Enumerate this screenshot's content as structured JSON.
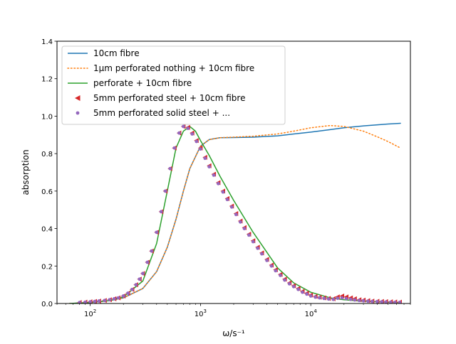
{
  "chart_data": {
    "type": "line",
    "title": "",
    "xlabel": "ω/s⁻¹",
    "ylabel": "absorption",
    "xscale": "log",
    "xlim": [
      50,
      80000
    ],
    "ylim": [
      0,
      1.4
    ],
    "x_ticks": [
      {
        "value": 100,
        "base": "10",
        "exp": "2"
      },
      {
        "value": 1000,
        "base": "10",
        "exp": "3"
      },
      {
        "value": 10000,
        "base": "10",
        "exp": "4"
      }
    ],
    "y_ticks": [
      "0.0",
      "0.2",
      "0.4",
      "0.6",
      "0.8",
      "1.0",
      "1.2",
      "1.4"
    ],
    "legend_position": "upper-left",
    "grid": false,
    "series": [
      {
        "name": "10cm fibre",
        "color": "#1f77b4",
        "style": "solid-line",
        "x": [
          65,
          100,
          150,
          200,
          300,
          400,
          500,
          600,
          700,
          800,
          1000,
          1200,
          1500,
          2000,
          3000,
          5000,
          7000,
          10000,
          15000,
          20000,
          30000,
          50000,
          65000
        ],
        "y": [
          0.0,
          0.005,
          0.015,
          0.03,
          0.08,
          0.17,
          0.3,
          0.45,
          0.6,
          0.72,
          0.84,
          0.875,
          0.885,
          0.886,
          0.888,
          0.895,
          0.905,
          0.915,
          0.928,
          0.938,
          0.948,
          0.958,
          0.962
        ]
      },
      {
        "name": "1μm perforated nothing + 10cm fibre",
        "color": "#ff7f0e",
        "style": "dotted-line",
        "x": [
          65,
          100,
          150,
          200,
          300,
          400,
          500,
          600,
          700,
          800,
          1000,
          1200,
          1500,
          2000,
          3000,
          5000,
          7000,
          10000,
          15000,
          20000,
          30000,
          40000,
          50000,
          65000
        ],
        "y": [
          0.0,
          0.005,
          0.015,
          0.03,
          0.08,
          0.17,
          0.3,
          0.45,
          0.6,
          0.72,
          0.84,
          0.875,
          0.885,
          0.888,
          0.893,
          0.905,
          0.92,
          0.938,
          0.95,
          0.945,
          0.92,
          0.89,
          0.865,
          0.83
        ]
      },
      {
        "name": "perforate + 10cm fibre",
        "color": "#2ca02c",
        "style": "solid-line",
        "x": [
          65,
          100,
          150,
          200,
          300,
          400,
          500,
          600,
          700,
          800,
          900,
          1000,
          1200,
          1500,
          2000,
          3000,
          5000,
          7000,
          10000,
          15000,
          20000,
          30000,
          50000,
          65000
        ],
        "y": [
          0.0,
          0.005,
          0.015,
          0.035,
          0.12,
          0.32,
          0.6,
          0.83,
          0.92,
          0.945,
          0.92,
          0.87,
          0.79,
          0.68,
          0.55,
          0.38,
          0.19,
          0.11,
          0.06,
          0.03,
          0.02,
          0.012,
          0.007,
          0.005
        ]
      },
      {
        "name": "5mm perforated steel  + 10cm fibre",
        "color": "#d62728",
        "style": "left-triangle-markers",
        "x": [
          80,
          90,
          100,
          110,
          120,
          135,
          150,
          165,
          180,
          200,
          220,
          240,
          260,
          280,
          300,
          330,
          360,
          400,
          440,
          480,
          530,
          580,
          640,
          700,
          770,
          840,
          920,
          1000,
          1100,
          1200,
          1320,
          1450,
          1600,
          1750,
          1920,
          2100,
          2300,
          2500,
          2750,
          3000,
          3300,
          3600,
          4000,
          4400,
          4800,
          5300,
          5800,
          6400,
          7000,
          7700,
          8400,
          9200,
          10000,
          11000,
          12000,
          13200,
          14500,
          16000,
          17500,
          19200,
          21000,
          23000,
          25000,
          27500,
          30000,
          33000,
          36000,
          40000,
          44000,
          48000,
          53000,
          58000,
          64000
        ],
        "y": [
          0.005,
          0.007,
          0.009,
          0.011,
          0.013,
          0.016,
          0.02,
          0.025,
          0.03,
          0.04,
          0.055,
          0.075,
          0.1,
          0.13,
          0.16,
          0.22,
          0.28,
          0.38,
          0.49,
          0.6,
          0.72,
          0.83,
          0.91,
          0.945,
          0.94,
          0.91,
          0.87,
          0.83,
          0.78,
          0.735,
          0.69,
          0.645,
          0.6,
          0.56,
          0.52,
          0.48,
          0.44,
          0.405,
          0.37,
          0.335,
          0.3,
          0.27,
          0.235,
          0.205,
          0.18,
          0.155,
          0.13,
          0.11,
          0.095,
          0.08,
          0.065,
          0.055,
          0.045,
          0.038,
          0.033,
          0.03,
          0.027,
          0.025,
          0.035,
          0.04,
          0.035,
          0.03,
          0.025,
          0.02,
          0.018,
          0.015,
          0.013,
          0.012,
          0.011,
          0.01,
          0.009,
          0.008,
          0.007
        ]
      },
      {
        "name": "5mm perforated solid steel  + ...",
        "color": "#9467bd",
        "style": "dot-markers",
        "x": [
          80,
          90,
          100,
          110,
          120,
          135,
          150,
          165,
          180,
          200,
          220,
          240,
          260,
          280,
          300,
          330,
          360,
          400,
          440,
          480,
          530,
          580,
          640,
          700,
          770,
          840,
          920,
          1000,
          1100,
          1200,
          1320,
          1450,
          1600,
          1750,
          1920,
          2100,
          2300,
          2500,
          2750,
          3000,
          3300,
          3600,
          4000,
          4400,
          4800,
          5300,
          5800,
          6400,
          7000,
          7700,
          8400,
          9200,
          10000,
          11000,
          12000,
          13200,
          14500,
          16000,
          17500,
          19200,
          21000,
          23000,
          25000,
          27500,
          30000,
          33000,
          36000,
          40000,
          44000,
          48000,
          53000,
          58000,
          64000
        ],
        "y": [
          0.005,
          0.007,
          0.009,
          0.011,
          0.013,
          0.016,
          0.02,
          0.025,
          0.03,
          0.04,
          0.055,
          0.075,
          0.1,
          0.13,
          0.16,
          0.22,
          0.28,
          0.38,
          0.49,
          0.6,
          0.72,
          0.83,
          0.91,
          0.945,
          0.935,
          0.905,
          0.865,
          0.825,
          0.775,
          0.73,
          0.685,
          0.64,
          0.595,
          0.555,
          0.515,
          0.475,
          0.435,
          0.4,
          0.365,
          0.33,
          0.295,
          0.265,
          0.23,
          0.2,
          0.175,
          0.15,
          0.125,
          0.105,
          0.09,
          0.075,
          0.06,
          0.05,
          0.04,
          0.034,
          0.03,
          0.027,
          0.024,
          0.022,
          0.028,
          0.03,
          0.026,
          0.022,
          0.019,
          0.016,
          0.014,
          0.012,
          0.011,
          0.01,
          0.009,
          0.008,
          0.007,
          0.006,
          0.006
        ]
      }
    ]
  }
}
